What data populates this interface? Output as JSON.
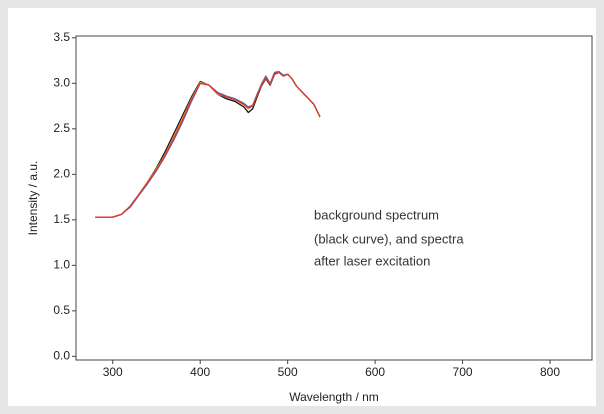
{
  "chart_data": {
    "type": "line",
    "x_label": "Wavelength / nm",
    "y_label": "Intensity / a.u.",
    "annotation": [
      "background spectrum",
      "(black curve), and spectra",
      "after laser excitation"
    ],
    "xlim": [
      258,
      848
    ],
    "ylim": [
      -0.04,
      3.52
    ],
    "xticks": [
      300,
      400,
      500,
      600,
      700,
      800
    ],
    "yticks": [
      {
        "value": 0,
        "label": "0.0"
      },
      {
        "value": 0.5,
        "label": "0.5"
      },
      {
        "value": 1,
        "label": "1.0"
      },
      {
        "value": 1.5,
        "label": "1.5"
      },
      {
        "value": 2,
        "label": "2.0"
      },
      {
        "value": 2.5,
        "label": "2.5"
      },
      {
        "value": 3,
        "label": "3.0"
      },
      {
        "value": 3.5,
        "label": "3.5"
      }
    ],
    "x": [
      280,
      290,
      300,
      310,
      320,
      330,
      340,
      350,
      360,
      370,
      380,
      390,
      400,
      410,
      420,
      430,
      440,
      450,
      455,
      460,
      465,
      470,
      475,
      480,
      485,
      490,
      495,
      500,
      505,
      510,
      520,
      530,
      537
    ],
    "series": [
      {
        "color": "#111111",
        "values": [
          1.53,
          1.53,
          1.53,
          1.56,
          1.65,
          1.78,
          1.92,
          2.07,
          2.25,
          2.45,
          2.65,
          2.85,
          3.02,
          2.98,
          2.88,
          2.83,
          2.8,
          2.74,
          2.68,
          2.72,
          2.85,
          2.97,
          3.05,
          2.98,
          3.1,
          3.12,
          3.08,
          3.1,
          3.05,
          2.97,
          2.87,
          2.77,
          2.63
        ]
      },
      {
        "color": "#4a5fd0",
        "values": [
          1.53,
          1.53,
          1.53,
          1.56,
          1.64,
          1.77,
          1.9,
          2.04,
          2.2,
          2.38,
          2.58,
          2.8,
          3.0,
          2.98,
          2.9,
          2.86,
          2.83,
          2.78,
          2.74,
          2.76,
          2.88,
          2.99,
          3.08,
          3.0,
          3.12,
          3.13,
          3.09,
          3.1,
          3.05,
          2.97,
          2.87,
          2.77,
          2.63
        ]
      },
      {
        "color": "#e8a030",
        "values": [
          1.53,
          1.53,
          1.53,
          1.56,
          1.65,
          1.78,
          1.92,
          2.06,
          2.22,
          2.42,
          2.62,
          2.83,
          3.01,
          2.98,
          2.88,
          2.85,
          2.82,
          2.76,
          2.72,
          2.75,
          2.87,
          2.98,
          3.06,
          2.99,
          3.11,
          3.12,
          3.08,
          3.1,
          3.05,
          2.97,
          2.87,
          2.77,
          2.63
        ]
      },
      {
        "color": "#d83a2a",
        "values": [
          1.53,
          1.53,
          1.53,
          1.56,
          1.65,
          1.78,
          1.91,
          2.05,
          2.21,
          2.4,
          2.6,
          2.82,
          3.0,
          2.98,
          2.89,
          2.85,
          2.82,
          2.77,
          2.73,
          2.75,
          2.87,
          2.98,
          3.06,
          2.99,
          3.11,
          3.12,
          3.08,
          3.1,
          3.05,
          2.97,
          2.87,
          2.77,
          2.63
        ]
      }
    ]
  }
}
